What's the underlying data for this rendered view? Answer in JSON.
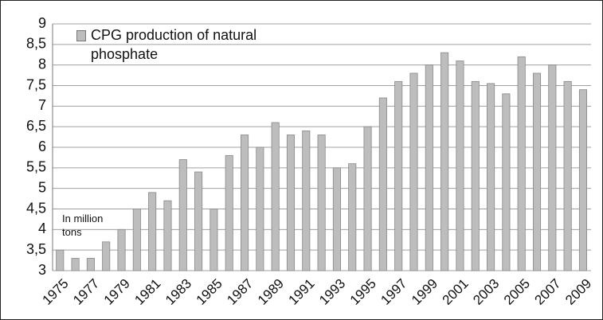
{
  "chart_data": {
    "type": "bar",
    "series": [
      {
        "name": "CPG production of natural phosphate",
        "color": "#bdbdbd",
        "values": [
          3.5,
          3.3,
          3.3,
          3.7,
          4.0,
          4.5,
          4.9,
          4.7,
          5.7,
          5.4,
          4.5,
          5.8,
          6.3,
          6.0,
          6.6,
          6.3,
          6.4,
          6.3,
          5.5,
          5.6,
          6.5,
          7.2,
          7.6,
          7.8,
          8.0,
          8.3,
          8.1,
          7.6,
          7.55,
          7.3,
          8.2,
          7.8,
          8.0,
          7.6,
          7.4
        ]
      }
    ],
    "categories": [
      "1975",
      null,
      "1977",
      null,
      "1979",
      null,
      "1981",
      null,
      "1983",
      null,
      "1985",
      null,
      "1987",
      null,
      "1989",
      null,
      "1991",
      null,
      "1993",
      null,
      "1995",
      null,
      "1997",
      null,
      "1999",
      null,
      "2001",
      null,
      "2003",
      null,
      "2005",
      null,
      "2007",
      null,
      "2009"
    ],
    "annotations": [
      "In million tons"
    ],
    "ylim": [
      3,
      9
    ],
    "yticks": [
      3,
      {
        "value": 3.5,
        "label": "3,5"
      },
      4,
      {
        "value": 4.5,
        "label": "4,5"
      },
      5,
      {
        "value": 5.5,
        "label": "5,5"
      },
      6,
      {
        "value": 6.5,
        "label": "6,5"
      },
      7,
      {
        "value": 7.5,
        "label": "7,5"
      },
      8,
      {
        "value": 8.5,
        "label": "8,5"
      },
      9
    ],
    "grid": true
  }
}
